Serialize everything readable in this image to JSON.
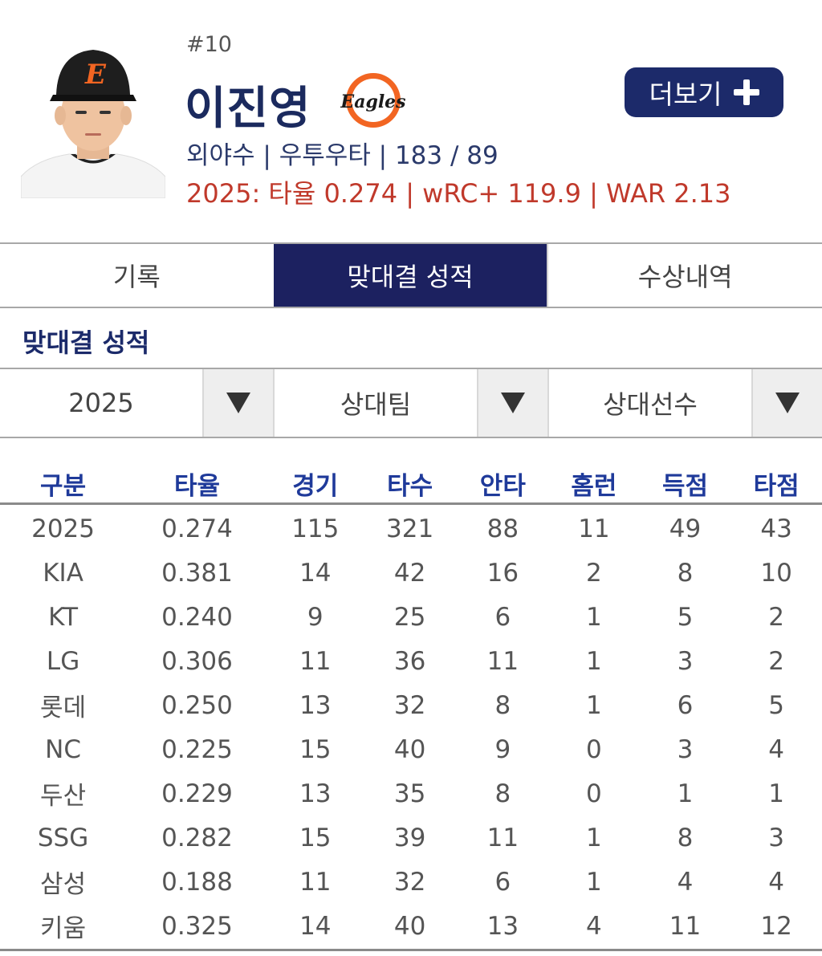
{
  "player": {
    "number": "#10",
    "name": "이진영",
    "info": "외야수 | 우투우타 | 183 / 89",
    "season_stats": "2025: 타율 0.274 | wRC+ 119.9 | WAR 2.13",
    "team_logo_text": "Eagles",
    "more_label": "더보기"
  },
  "tabs": [
    {
      "label": "기록",
      "active": false
    },
    {
      "label": "맞대결 성적",
      "active": true
    },
    {
      "label": "수상내역",
      "active": false
    }
  ],
  "section_title": "맞대결 성적",
  "filters": {
    "year": "2025",
    "opponent_team": "상대팀",
    "opponent_player": "상대선수"
  },
  "table": {
    "headers": [
      "구분",
      "타율",
      "경기",
      "타수",
      "안타",
      "홈런",
      "득점",
      "타점"
    ],
    "rows": [
      [
        "2025",
        "0.274",
        "115",
        "321",
        "88",
        "11",
        "49",
        "43"
      ],
      [
        "KIA",
        "0.381",
        "14",
        "42",
        "16",
        "2",
        "8",
        "10"
      ],
      [
        "KT",
        "0.240",
        "9",
        "25",
        "6",
        "1",
        "5",
        "2"
      ],
      [
        "LG",
        "0.306",
        "11",
        "36",
        "11",
        "1",
        "3",
        "2"
      ],
      [
        "롯데",
        "0.250",
        "13",
        "32",
        "8",
        "1",
        "6",
        "5"
      ],
      [
        "NC",
        "0.225",
        "15",
        "40",
        "9",
        "0",
        "3",
        "4"
      ],
      [
        "두산",
        "0.229",
        "13",
        "35",
        "8",
        "0",
        "1",
        "1"
      ],
      [
        "SSG",
        "0.282",
        "15",
        "39",
        "11",
        "1",
        "8",
        "3"
      ],
      [
        "삼성",
        "0.188",
        "11",
        "32",
        "6",
        "1",
        "4",
        "4"
      ],
      [
        "키움",
        "0.325",
        "14",
        "40",
        "13",
        "4",
        "11",
        "12"
      ]
    ]
  },
  "colors": {
    "navy": "#1c2160",
    "header_blue": "#1f3a9a",
    "accent_red": "#c0392b",
    "eagles_orange": "#f26522"
  }
}
